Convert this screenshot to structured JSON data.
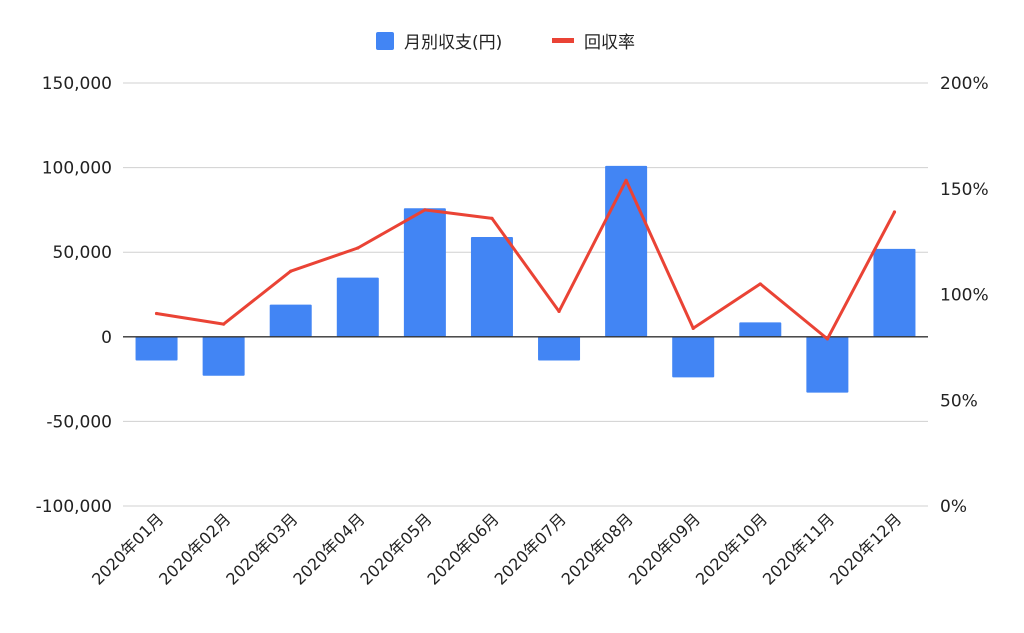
{
  "chart_data": {
    "type": "bar",
    "categories": [
      "2020年01月",
      "2020年02月",
      "2020年03月",
      "2020年04月",
      "2020年05月",
      "2020年06月",
      "2020年07月",
      "2020年08月",
      "2020年09月",
      "2020年10月",
      "2020年11月",
      "2020年12月"
    ],
    "series": [
      {
        "name": "月別収支(円)",
        "type": "bar",
        "axis": "left",
        "color": "#4285F4",
        "values": [
          -14000,
          -23000,
          19000,
          35000,
          76000,
          59000,
          -14000,
          101000,
          -24000,
          8500,
          -33000,
          52000
        ]
      },
      {
        "name": "回収率",
        "type": "line",
        "axis": "right",
        "color": "#EA4335",
        "values": [
          91,
          86,
          111,
          122,
          140,
          136,
          92,
          154,
          84,
          105,
          79,
          139
        ]
      }
    ],
    "left_axis": {
      "ylim": [
        -100000,
        150000
      ],
      "ticks": [
        -100000,
        -50000,
        0,
        50000,
        100000,
        150000
      ],
      "tick_labels": [
        "-100,000",
        "-50,000",
        "0",
        "50,000",
        "100,000",
        "150,000"
      ]
    },
    "right_axis": {
      "ylim": [
        0,
        200
      ],
      "ticks": [
        0,
        50,
        100,
        150,
        200
      ],
      "tick_labels": [
        "0%",
        "50%",
        "100%",
        "150%",
        "200%"
      ]
    },
    "title": "",
    "xlabel": "",
    "ylabel": "",
    "grid": true,
    "legend_position": "top-center"
  }
}
